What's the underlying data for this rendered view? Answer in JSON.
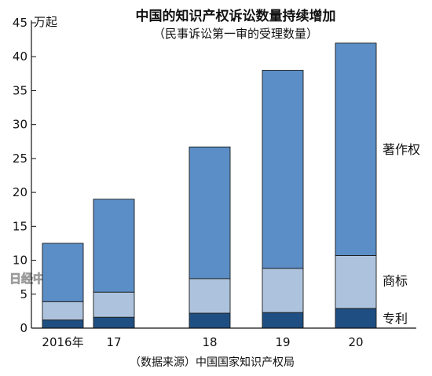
{
  "chart_data": {
    "type": "bar",
    "stacked": true,
    "title": "中国的知识产权诉讼数量持续增加",
    "subtitle": "（民事诉讼第一审的受理数量）",
    "ylabel": "万起",
    "source": "（数据来源）中国国家知识产权局",
    "watermark": "日经中文网",
    "categories": [
      "2016年",
      "17",
      "18",
      "19",
      "20"
    ],
    "ylim": [
      0,
      45
    ],
    "yticks": [
      0,
      5,
      10,
      15,
      20,
      25,
      30,
      35,
      40,
      45
    ],
    "grid": false,
    "legend_placement": "right, labels beside the last bar",
    "series": [
      {
        "name": "专利",
        "color": "#1f4f82",
        "values": [
          1.2,
          1.6,
          2.2,
          2.3,
          2.9
        ]
      },
      {
        "name": "商标",
        "color": "#adc3dd",
        "values": [
          2.7,
          3.7,
          5.1,
          6.5,
          7.8
        ]
      },
      {
        "name": "著作权",
        "color": "#5b8ec6",
        "values": [
          8.6,
          13.7,
          19.4,
          29.2,
          31.3
        ]
      }
    ]
  }
}
